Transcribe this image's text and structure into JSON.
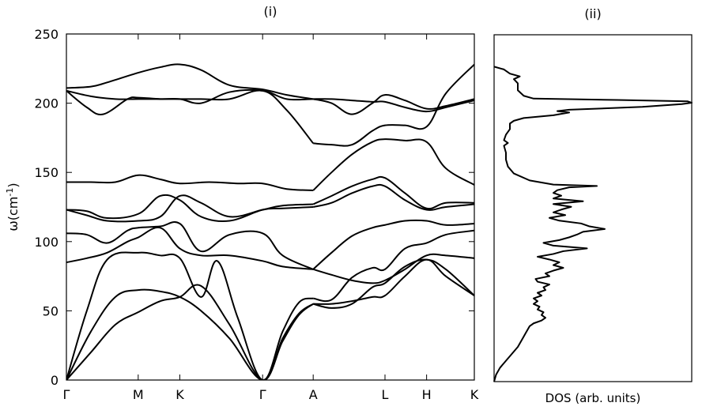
{
  "chart_data": [
    {
      "type": "line",
      "title": "(i)",
      "xlabel": "",
      "ylabel_base": "ω(cm",
      "ylabel_exp": "-1",
      "ylabel_close": ")",
      "ylim": [
        0,
        250
      ],
      "yticks": [
        0,
        50,
        100,
        150,
        200,
        250
      ],
      "kpoints": [
        {
          "label": "Γ",
          "x": 0
        },
        {
          "label": "M",
          "x": 0.176
        },
        {
          "label": "K",
          "x": 0.278
        },
        {
          "label": "Γ",
          "x": 0.481
        },
        {
          "label": "A",
          "x": 0.605
        },
        {
          "label": "L",
          "x": 0.781
        },
        {
          "label": "H",
          "x": 0.883
        },
        {
          "label": "K",
          "x": 1.0
        }
      ],
      "series": [
        {
          "x": [
            0,
            0.06,
            0.12,
            0.176,
            0.23,
            0.278,
            0.33,
            0.4,
            0.481,
            0.53,
            0.57,
            0.605
          ],
          "y": [
            0,
            20,
            40,
            49,
            57,
            60,
            68,
            40,
            0,
            30,
            48,
            55
          ]
        },
        {
          "x": [
            0,
            0.06,
            0.12,
            0.176,
            0.23,
            0.278,
            0.33,
            0.4,
            0.481,
            0.53,
            0.57,
            0.605
          ],
          "y": [
            0,
            35,
            60,
            65,
            64,
            60,
            50,
            30,
            0,
            28,
            47,
            55
          ]
        },
        {
          "x": [
            0,
            0.05,
            0.1,
            0.176,
            0.23,
            0.278,
            0.33,
            0.37,
            0.42,
            0.481,
            0.53,
            0.57,
            0.605
          ],
          "y": [
            0,
            50,
            87,
            92,
            90,
            88,
            60,
            86,
            45,
            0,
            35,
            56,
            59
          ]
        },
        {
          "x": [
            0.605,
            0.65,
            0.7,
            0.75,
            0.781,
            0.83,
            0.883,
            0.93,
            1.0
          ],
          "y": [
            55,
            55,
            57,
            60,
            61,
            75,
            87,
            75,
            61
          ]
        },
        {
          "x": [
            0.605,
            0.65,
            0.7,
            0.75,
            0.781,
            0.83,
            0.883,
            0.93,
            1.0
          ],
          "y": [
            55,
            52,
            55,
            67,
            70,
            82,
            87,
            80,
            61
          ]
        },
        {
          "x": [
            0.605,
            0.65,
            0.7,
            0.75,
            0.781,
            0.83,
            0.883,
            0.93,
            1.0
          ],
          "y": [
            59,
            58,
            74,
            81,
            80,
            95,
            99,
            105,
            108
          ]
        },
        {
          "x": [
            0,
            0.05,
            0.1,
            0.15,
            0.176,
            0.23,
            0.278,
            0.33,
            0.4,
            0.481,
            0.53,
            0.605
          ],
          "y": [
            85,
            88,
            92,
            100,
            103,
            110,
            95,
            90,
            90,
            86,
            82,
            80
          ]
        },
        {
          "x": [
            0,
            0.05,
            0.1,
            0.15,
            0.176,
            0.23,
            0.278,
            0.33,
            0.4,
            0.481,
            0.53,
            0.605
          ],
          "y": [
            106,
            105,
            99,
            108,
            110,
            111,
            113,
            93,
            105,
            106,
            90,
            80
          ]
        },
        {
          "x": [
            0.605,
            0.65,
            0.7,
            0.75,
            0.781,
            0.83,
            0.883,
            0.93,
            1.0
          ],
          "y": [
            80,
            76,
            72,
            70,
            72,
            80,
            90,
            90,
            88
          ]
        },
        {
          "x": [
            0.605,
            0.65,
            0.7,
            0.75,
            0.781,
            0.83,
            0.883,
            0.93,
            1.0
          ],
          "y": [
            80,
            92,
            104,
            110,
            112,
            115,
            115,
            112,
            113
          ]
        },
        {
          "x": [
            0,
            0.05,
            0.1,
            0.176,
            0.23,
            0.278,
            0.33,
            0.4,
            0.481,
            0.53,
            0.605
          ],
          "y": [
            123,
            122,
            117,
            120,
            133,
            130,
            118,
            115,
            123,
            124,
            125
          ]
        },
        {
          "x": [
            0,
            0.05,
            0.1,
            0.176,
            0.23,
            0.278,
            0.33,
            0.4,
            0.481,
            0.53,
            0.605
          ],
          "y": [
            123,
            119,
            115,
            115,
            118,
            133,
            128,
            118,
            123,
            126,
            127
          ]
        },
        {
          "x": [
            0.605,
            0.65,
            0.7,
            0.75,
            0.781,
            0.83,
            0.883,
            0.93,
            1.0
          ],
          "y": [
            125,
            128,
            135,
            140,
            140,
            130,
            123,
            125,
            127
          ]
        },
        {
          "x": [
            0.605,
            0.65,
            0.7,
            0.75,
            0.781,
            0.83,
            0.883,
            0.93,
            1.0
          ],
          "y": [
            127,
            133,
            140,
            145,
            146,
            135,
            124,
            128,
            128
          ]
        },
        {
          "x": [
            0,
            0.06,
            0.12,
            0.176,
            0.23,
            0.278,
            0.35,
            0.42,
            0.481,
            0.54,
            0.605
          ],
          "y": [
            143,
            143,
            143,
            148,
            145,
            142,
            143,
            142,
            142,
            138,
            137
          ]
        },
        {
          "x": [
            0.605,
            0.65,
            0.7,
            0.75,
            0.781,
            0.83,
            0.883,
            0.93,
            1.0
          ],
          "y": [
            137,
            150,
            163,
            172,
            174,
            173,
            172,
            153,
            141
          ]
        },
        {
          "x": [
            0,
            0.06,
            0.1,
            0.176,
            0.23,
            0.278,
            0.33,
            0.4,
            0.481,
            0.54,
            0.605
          ],
          "y": [
            211,
            212,
            215,
            222,
            226,
            228,
            224,
            213,
            210,
            206,
            203
          ]
        },
        {
          "x": [
            0,
            0.05,
            0.09,
            0.15,
            0.176,
            0.23,
            0.278,
            0.33,
            0.4,
            0.481,
            0.54,
            0.605
          ],
          "y": [
            209,
            197,
            192,
            203,
            204,
            203,
            203,
            200,
            208,
            209,
            203,
            203
          ]
        },
        {
          "x": [
            0,
            0.06,
            0.12,
            0.176,
            0.23,
            0.278,
            0.33,
            0.4,
            0.481,
            0.54,
            0.605
          ],
          "y": [
            209,
            205,
            203,
            203,
            203,
            203,
            203,
            203,
            209,
            195,
            171
          ]
        },
        {
          "x": [
            0.605,
            0.65,
            0.7,
            0.75,
            0.781,
            0.83,
            0.883,
            0.93,
            1.0
          ],
          "y": [
            203,
            203,
            202,
            201,
            201,
            197,
            194,
            197,
            202
          ]
        },
        {
          "x": [
            0.605,
            0.65,
            0.7,
            0.75,
            0.781,
            0.83,
            0.883,
            0.93,
            1.0
          ],
          "y": [
            203,
            200,
            192,
            200,
            206,
            202,
            196,
            198,
            203
          ]
        },
        {
          "x": [
            0.605,
            0.65,
            0.7,
            0.75,
            0.781,
            0.83,
            0.883,
            0.93,
            1.0
          ],
          "y": [
            171,
            170,
            170,
            180,
            184,
            184,
            183,
            207,
            228
          ]
        }
      ]
    },
    {
      "type": "line",
      "title": "(ii)",
      "xlabel": "DOS (arb. units)",
      "ylim": [
        0,
        250
      ],
      "xlim": [
        0,
        1
      ],
      "series": [
        {
          "y": [
            0,
            5,
            10,
            15,
            20,
            25,
            30,
            35,
            40,
            42,
            44,
            46,
            48,
            50,
            52,
            54,
            56,
            58,
            60,
            62,
            64,
            66,
            68,
            70,
            72,
            74,
            76,
            78,
            80,
            82,
            84,
            86,
            88,
            90,
            92,
            94,
            96,
            98,
            100,
            102,
            104,
            106,
            108,
            110,
            112,
            114,
            116,
            118,
            120,
            122,
            124,
            126,
            128,
            130,
            132,
            134,
            136,
            138,
            140,
            141,
            142,
            145,
            150,
            155,
            160,
            165,
            170,
            172,
            174,
            178,
            182,
            186,
            188,
            190,
            192,
            194,
            195,
            196,
            198,
            200,
            201,
            202,
            203,
            204,
            206,
            210,
            215,
            218,
            220,
            222,
            225,
            227
          ],
          "x": [
            0.0,
            0.01,
            0.03,
            0.06,
            0.09,
            0.12,
            0.14,
            0.16,
            0.18,
            0.2,
            0.24,
            0.26,
            0.24,
            0.25,
            0.22,
            0.23,
            0.2,
            0.22,
            0.2,
            0.24,
            0.22,
            0.26,
            0.25,
            0.28,
            0.22,
            0.21,
            0.28,
            0.26,
            0.3,
            0.35,
            0.3,
            0.33,
            0.28,
            0.22,
            0.3,
            0.35,
            0.47,
            0.3,
            0.25,
            0.33,
            0.38,
            0.42,
            0.45,
            0.56,
            0.48,
            0.44,
            0.33,
            0.28,
            0.36,
            0.3,
            0.34,
            0.39,
            0.3,
            0.45,
            0.3,
            0.34,
            0.3,
            0.32,
            0.38,
            0.52,
            0.3,
            0.18,
            0.1,
            0.07,
            0.06,
            0.06,
            0.05,
            0.07,
            0.05,
            0.06,
            0.08,
            0.08,
            0.1,
            0.15,
            0.3,
            0.38,
            0.32,
            0.38,
            0.75,
            0.95,
            1.0,
            0.98,
            0.62,
            0.2,
            0.15,
            0.12,
            0.12,
            0.1,
            0.13,
            0.08,
            0.05,
            0.0
          ]
        }
      ]
    }
  ]
}
